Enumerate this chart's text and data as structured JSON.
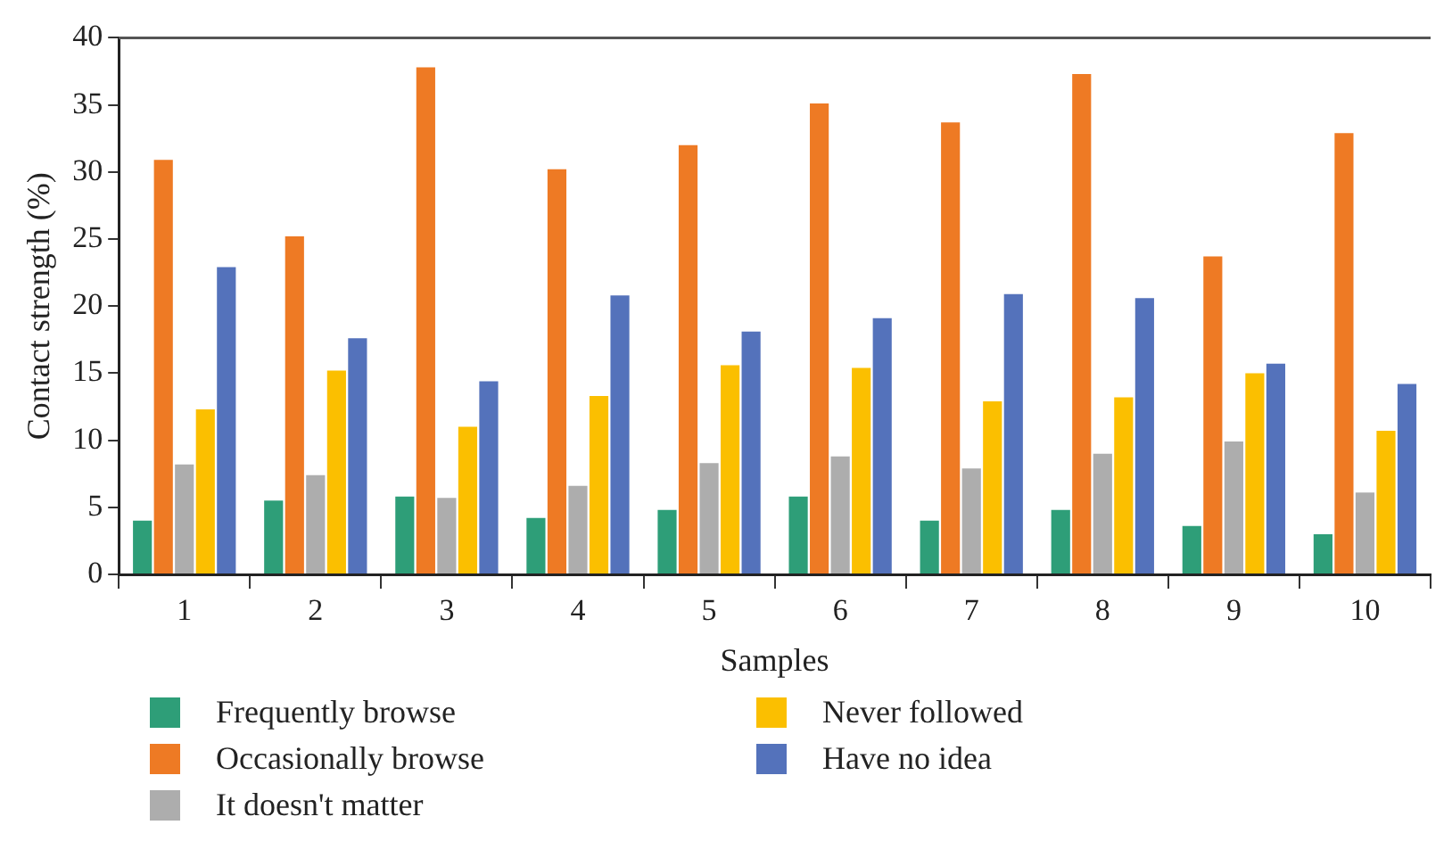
{
  "chart_data": {
    "type": "bar",
    "xlabel": "Samples",
    "ylabel": "Contact strength (%)",
    "categories": [
      "1",
      "2",
      "3",
      "4",
      "5",
      "6",
      "7",
      "8",
      "9",
      "10"
    ],
    "series": [
      {
        "name": "Frequently browse",
        "color": "#2e9e78",
        "values": [
          4.0,
          5.5,
          5.8,
          4.2,
          4.8,
          5.8,
          4.0,
          4.8,
          3.6,
          3.0
        ]
      },
      {
        "name": "Occasionally browse",
        "color": "#ee7a24",
        "values": [
          30.9,
          25.2,
          37.8,
          30.2,
          32.0,
          35.1,
          33.7,
          37.3,
          23.7,
          32.9
        ]
      },
      {
        "name": "It doesn't matter",
        "color": "#adadad",
        "values": [
          8.2,
          7.4,
          5.7,
          6.6,
          8.3,
          8.8,
          7.9,
          9.0,
          9.9,
          6.1
        ]
      },
      {
        "name": "Never followed",
        "color": "#fbbf00",
        "values": [
          12.3,
          15.2,
          11.0,
          13.3,
          15.6,
          15.4,
          12.9,
          13.2,
          15.0,
          10.7
        ]
      },
      {
        "name": "Have no idea",
        "color": "#5472bb",
        "values": [
          22.9,
          17.6,
          14.4,
          20.8,
          18.1,
          19.1,
          20.9,
          20.6,
          15.7,
          14.2
        ]
      }
    ],
    "ylim": [
      0,
      40
    ],
    "yticks": [
      0,
      5,
      10,
      15,
      20,
      25,
      30,
      35,
      40
    ],
    "grid": false,
    "legend": "bottom"
  }
}
